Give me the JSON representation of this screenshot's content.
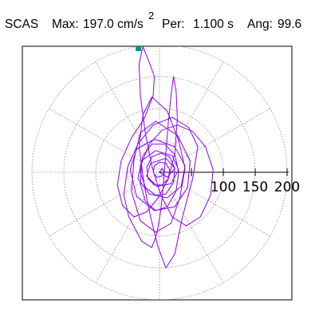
{
  "header": {
    "station": "SCAS",
    "max_label": "Max:",
    "max_value": "197.0 cm/s",
    "max_exp": "2",
    "per_label": "Per:",
    "per_value": "1.100 s",
    "ang_label": "Ang:",
    "ang_value": "99.6"
  },
  "colors": {
    "trace": "#8800ff",
    "marker": "#009977",
    "grid": "#888888",
    "axis": "#000000",
    "frame": "#000000"
  },
  "chart_data": {
    "type": "scatter",
    "subtype": "polar particle-motion",
    "title": "",
    "xlabel": "",
    "ylabel": "",
    "radial_range": [
      0,
      200
    ],
    "radial_ticks": [
      50,
      100,
      150,
      200
    ],
    "radial_tick_labels": [
      "100",
      "150",
      "200"
    ],
    "angular_gridlines_deg": [
      0,
      30,
      60,
      90,
      120,
      150,
      180,
      210,
      240,
      270,
      300,
      330
    ],
    "grid": true,
    "max_point": {
      "radius": 197.0,
      "angle_deg": 99.6
    },
    "series": [
      {
        "points": [
          [
            0,
            0
          ],
          [
            12,
            -8
          ],
          [
            24,
            6
          ],
          [
            10,
            22
          ],
          [
            -14,
            14
          ],
          [
            -20,
            -6
          ],
          [
            -4,
            -22
          ],
          [
            18,
            -18
          ],
          [
            30,
            4
          ],
          [
            20,
            26
          ],
          [
            -6,
            34
          ],
          [
            -28,
            18
          ],
          [
            -34,
            -10
          ],
          [
            -16,
            -34
          ],
          [
            12,
            -40
          ],
          [
            34,
            -22
          ],
          [
            40,
            10
          ],
          [
            24,
            40
          ],
          [
            -8,
            52
          ],
          [
            -36,
            36
          ],
          [
            -46,
            4
          ],
          [
            -36,
            -38
          ],
          [
            -8,
            -60
          ],
          [
            24,
            -54
          ],
          [
            44,
            -24
          ],
          [
            48,
            18
          ],
          [
            28,
            58
          ],
          [
            -6,
            80
          ],
          [
            -30,
            62
          ],
          [
            -40,
            20
          ],
          [
            -44,
            -30
          ],
          [
            -30,
            -76
          ],
          [
            -6,
            -94
          ],
          [
            18,
            -80
          ],
          [
            32,
            -40
          ],
          [
            40,
            6
          ],
          [
            30,
            50
          ],
          [
            12,
            96
          ],
          [
            -12,
            118
          ],
          [
            -26,
            90
          ],
          [
            -32,
            40
          ],
          [
            -24,
            -20
          ],
          [
            -14,
            -70
          ],
          [
            -2,
            -118
          ],
          [
            10,
            -150
          ],
          [
            24,
            -128
          ],
          [
            36,
            -70
          ],
          [
            52,
            -10
          ],
          [
            60,
            40
          ],
          [
            46,
            70
          ],
          [
            20,
            86
          ],
          [
            -10,
            74
          ],
          [
            -34,
            44
          ],
          [
            -50,
            8
          ],
          [
            -56,
            -36
          ],
          [
            -48,
            -70
          ],
          [
            -28,
            -108
          ],
          [
            -12,
            -118
          ],
          [
            -4,
            -96
          ],
          [
            2,
            -60
          ],
          [
            6,
            -20
          ],
          [
            10,
            30
          ],
          [
            14,
            80
          ],
          [
            18,
            120
          ],
          [
            22,
            150
          ],
          [
            26,
            128
          ],
          [
            28,
            84
          ],
          [
            24,
            30
          ],
          [
            14,
            -10
          ],
          [
            -2,
            -40
          ],
          [
            -20,
            -62
          ],
          [
            -40,
            -70
          ],
          [
            -58,
            -52
          ],
          [
            -66,
            -20
          ],
          [
            -60,
            18
          ],
          [
            -44,
            54
          ],
          [
            -24,
            84
          ],
          [
            -10,
            120
          ],
          [
            -8,
            150
          ],
          [
            -16,
            172
          ],
          [
            -26,
            197
          ],
          [
            -32,
            170
          ],
          [
            -30,
            120
          ],
          [
            -22,
            60
          ],
          [
            -12,
            10
          ],
          [
            2,
            -36
          ],
          [
            20,
            -70
          ],
          [
            42,
            -84
          ],
          [
            64,
            -70
          ],
          [
            80,
            -36
          ],
          [
            84,
            4
          ],
          [
            72,
            40
          ],
          [
            52,
            64
          ],
          [
            28,
            74
          ],
          [
            4,
            66
          ],
          [
            -16,
            44
          ],
          [
            -28,
            14
          ],
          [
            -30,
            -18
          ],
          [
            -22,
            -46
          ],
          [
            -6,
            -60
          ],
          [
            12,
            -54
          ],
          [
            26,
            -30
          ],
          [
            30,
            0
          ],
          [
            24,
            28
          ],
          [
            8,
            44
          ],
          [
            -12,
            44
          ],
          [
            -26,
            26
          ],
          [
            -30,
            0
          ],
          [
            -22,
            -24
          ],
          [
            -6,
            -36
          ],
          [
            10,
            -34
          ],
          [
            22,
            -16
          ],
          [
            24,
            6
          ],
          [
            16,
            24
          ],
          [
            2,
            30
          ],
          [
            -12,
            24
          ],
          [
            -20,
            8
          ],
          [
            -18,
            -10
          ],
          [
            -8,
            -20
          ],
          [
            4,
            -20
          ],
          [
            14,
            -10
          ],
          [
            16,
            4
          ],
          [
            10,
            14
          ],
          [
            0,
            16
          ],
          [
            -8,
            10
          ],
          [
            -10,
            0
          ],
          [
            -4,
            -8
          ],
          [
            4,
            -6
          ],
          [
            8,
            0
          ],
          [
            4,
            6
          ],
          [
            0,
            0
          ]
        ]
      }
    ]
  }
}
